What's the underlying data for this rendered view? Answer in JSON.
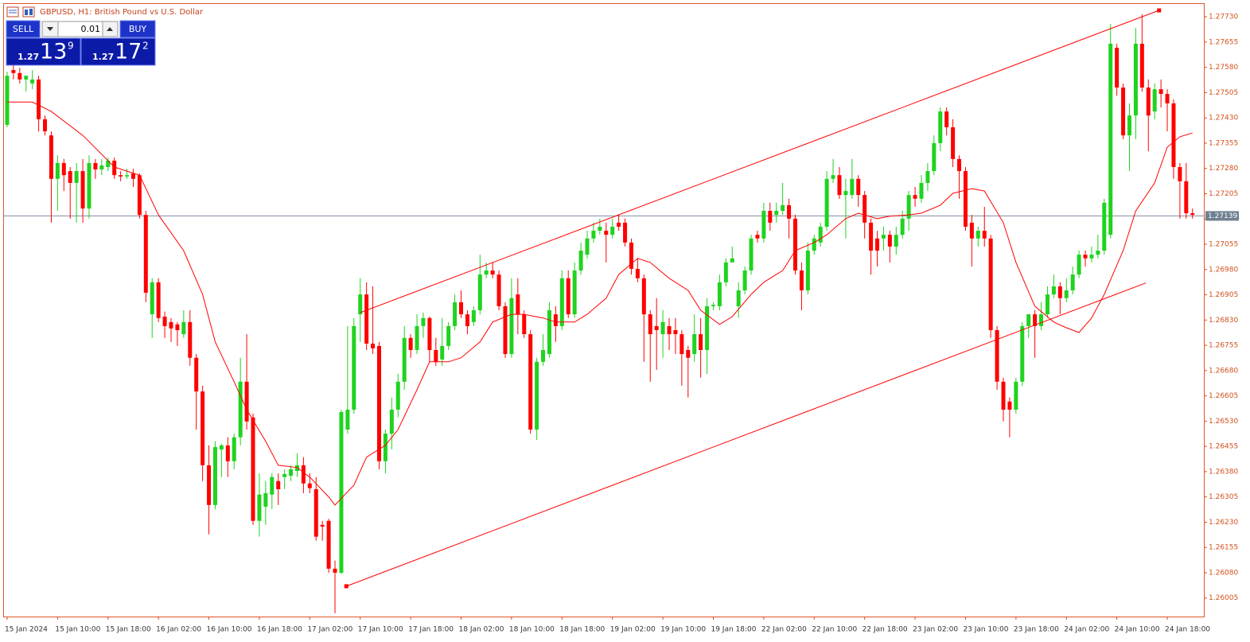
{
  "chart_data": {
    "type": "candlestick",
    "title": "GBPUSD, H1:  British Pound vs U.S. Dollar",
    "up_color": "#1fd31f",
    "down_color": "#ff0000",
    "axis_color": "#d2501e",
    "xlim": [
      -0.5,
      189.8
    ],
    "xticks": [
      {
        "value": 0,
        "label": "15 Jan 2024"
      },
      {
        "value": 8,
        "label": "15 Jan 10:00"
      },
      {
        "value": 16,
        "label": "15 Jan 18:00"
      },
      {
        "value": 24,
        "label": "16 Jan 02:00"
      },
      {
        "value": 32,
        "label": "16 Jan 10:00"
      },
      {
        "value": 40,
        "label": "16 Jan 18:00"
      },
      {
        "value": 48,
        "label": "17 Jan 02:00"
      },
      {
        "value": 56,
        "label": "17 Jan 10:00"
      },
      {
        "value": 64,
        "label": "17 Jan 18:00"
      },
      {
        "value": 72,
        "label": "18 Jan 02:00"
      },
      {
        "value": 80,
        "label": "18 Jan 10:00"
      },
      {
        "value": 88,
        "label": "18 Jan 18:00"
      },
      {
        "value": 96,
        "label": "19 Jan 02:00"
      },
      {
        "value": 104,
        "label": "19 Jan 10:00"
      },
      {
        "value": 112,
        "label": "19 Jan 18:00"
      },
      {
        "value": 120,
        "label": "22 Jan 02:00"
      },
      {
        "value": 128,
        "label": "22 Jan 10:00"
      },
      {
        "value": 136,
        "label": "22 Jan 18:00"
      },
      {
        "value": 144,
        "label": "23 Jan 02:00"
      },
      {
        "value": 152,
        "label": "23 Jan 10:00"
      },
      {
        "value": 160,
        "label": "23 Jan 18:00"
      },
      {
        "value": 168,
        "label": "24 Jan 02:00"
      },
      {
        "value": 176,
        "label": "24 Jan 10:00"
      },
      {
        "value": 184,
        "label": "24 Jan 18:00"
      }
    ],
    "ylim": [
      1.2595,
      1.27768
    ],
    "yticks": [
      1.26005,
      {
        "value": 1.2608,
        "label": "1.26080"
      },
      1.26155,
      {
        "value": 1.2623,
        "label": "1.26230"
      },
      1.26305,
      {
        "value": 1.2638,
        "label": "1.26380"
      },
      1.26455,
      {
        "value": 1.2653,
        "label": "1.26530"
      },
      1.26605,
      {
        "value": 1.2668,
        "label": "1.26680"
      },
      1.26755,
      {
        "value": 1.2683,
        "label": "1.26830"
      },
      1.26905,
      {
        "value": 1.2698,
        "label": "1.26980"
      },
      1.27055,
      {
        "value": 1.2713,
        "label": "1.27130"
      },
      1.27205,
      {
        "value": 1.2728,
        "label": "1.27280"
      },
      1.27355,
      {
        "value": 1.2743,
        "label": "1.27430"
      },
      1.27505,
      {
        "value": 1.2758,
        "label": "1.27580"
      },
      1.27655,
      {
        "value": 1.2773,
        "label": "1.27730"
      }
    ],
    "open": [
      1.27409,
      1.27572,
      1.27563,
      1.27544,
      1.27532,
      1.27544,
      1.27426,
      1.27378,
      1.27249,
      1.27296,
      1.27272,
      1.27237,
      1.27272,
      1.27161,
      1.27296,
      1.27277,
      1.27284,
      1.27303,
      1.2726,
      1.27256,
      1.27265,
      1.2726,
      1.27142,
      1.26847,
      1.26942,
      1.2684,
      1.26824,
      1.26817,
      1.26788,
      1.26824,
      1.26718,
      1.26618,
      1.26399,
      1.26281,
      1.26446,
      1.26458,
      1.26411,
      1.26482,
      1.26647,
      1.26541,
      1.26234,
      1.26276,
      1.26312,
      1.26352,
      1.26364,
      1.26368,
      1.26382,
      1.26399,
      1.26345,
      1.26328,
      1.26222,
      1.26234,
      1.26092,
      1.2608,
      1.26505,
      1.26564,
      1.26847,
      1.26906,
      1.2676,
      1.26753,
      1.26411,
      1.26493,
      1.26564,
      1.26647,
      1.26777,
      1.26741,
      1.26812,
      1.26836,
      1.26741,
      1.26713,
      1.26753,
      1.26812,
      1.26883,
      1.26847,
      1.26824,
      1.26859,
      1.26965,
      1.26977,
      1.26965,
      1.26871,
      1.26729,
      1.26906,
      1.26847,
      1.26788,
      1.26505,
      1.26706,
      1.26729,
      1.26847,
      1.26812,
      1.26954,
      1.26847,
      1.26977,
      1.27024,
      1.27072,
      1.27095,
      1.27095,
      1.27083,
      1.27119,
      1.27119,
      1.2706,
      1.26982,
      1.26954,
      1.26847,
      1.26812,
      1.26788,
      1.26812,
      1.268,
      1.26788,
      1.26741,
      1.26729,
      1.26788,
      1.26741,
      1.26871,
      1.26871,
      1.26942,
      1.27001,
      1.26871,
      1.26918,
      1.26977,
      1.27083,
      1.27072,
      1.27154,
      1.27142,
      1.27154,
      1.27171,
      1.27131,
      1.26977,
      1.26918,
      1.27036,
      1.2706,
      1.27107,
      1.27249,
      1.2726,
      1.27201,
      1.27201,
      1.27249,
      1.27201,
      1.27119,
      1.27072,
      1.27072,
      1.27083,
      1.27048,
      1.27083,
      1.27131,
      1.27201,
      1.2719,
      1.27237,
      1.27272,
      1.27355,
      1.27449,
      1.27402,
      1.27308,
      1.27272,
      1.27119,
      1.27072,
      1.27095,
      1.27072,
      1.268,
      1.26647,
      1.26588,
      1.26564,
      1.26647,
      1.26812,
      1.26847,
      1.26812,
      1.26847,
      1.26906,
      1.2693,
      1.26895,
      1.26918,
      1.26965,
      1.27024,
      1.27013,
      1.27024,
      1.27036,
      1.27083,
      1.27638,
      1.2752,
      1.27378,
      1.27437,
      1.2765,
      1.2752,
      1.27449,
      1.27515,
      1.27501,
      1.27473,
      1.27284,
      1.27242,
      1.27147
    ],
    "high": [
      1.27567,
      1.27586,
      1.27579,
      1.27555,
      1.27572,
      1.27555,
      1.27437,
      1.2739,
      1.27319,
      1.27308,
      1.27284,
      1.27296,
      1.27308,
      1.27319,
      1.27308,
      1.27308,
      1.27312,
      1.27312,
      1.27272,
      1.27279,
      1.27279,
      1.27265,
      1.27154,
      1.26954,
      1.26954,
      1.26855,
      1.26836,
      1.26824,
      1.26859,
      1.26859,
      1.26729,
      1.26635,
      1.26458,
      1.2647,
      1.26463,
      1.26482,
      1.26493,
      1.26718,
      1.26788,
      1.26552,
      1.26375,
      1.26352,
      1.26375,
      1.26375,
      1.26387,
      1.26399,
      1.26434,
      1.26423,
      1.26375,
      1.26364,
      1.26234,
      1.2624,
      1.26116,
      1.26564,
      1.26812,
      1.26836,
      1.26954,
      1.26942,
      1.2693,
      1.26765,
      1.26505,
      1.266,
      1.2667,
      1.26812,
      1.26788,
      1.26847,
      1.26852,
      1.2684,
      1.26777,
      1.26836,
      1.26824,
      1.26906,
      1.26918,
      1.26859,
      1.26871,
      1.27024,
      1.27001,
      1.27001,
      1.26977,
      1.26883,
      1.26954,
      1.26954,
      1.26859,
      1.268,
      1.26718,
      1.26788,
      1.26883,
      1.26871,
      1.26977,
      1.26977,
      1.27001,
      1.2706,
      1.27095,
      1.27119,
      1.27131,
      1.27119,
      1.27131,
      1.27142,
      1.27131,
      1.27072,
      1.27013,
      1.26965,
      1.26859,
      1.26895,
      1.26859,
      1.26836,
      1.26836,
      1.268,
      1.26753,
      1.26847,
      1.26836,
      1.26895,
      1.26883,
      1.26965,
      1.27013,
      1.27048,
      1.26942,
      1.26989,
      1.27083,
      1.27095,
      1.27178,
      1.27178,
      1.27178,
      1.27237,
      1.2719,
      1.27142,
      1.27001,
      1.2706,
      1.27083,
      1.27119,
      1.27272,
      1.27308,
      1.27284,
      1.27249,
      1.27308,
      1.2726,
      1.27213,
      1.27131,
      1.27095,
      1.27107,
      1.27095,
      1.27107,
      1.27154,
      1.27213,
      1.27225,
      1.2726,
      1.27296,
      1.27378,
      1.27461,
      1.27461,
      1.27426,
      1.27319,
      1.27284,
      1.27142,
      1.27107,
      1.27166,
      1.27083,
      1.26812,
      1.26659,
      1.266,
      1.26659,
      1.26824,
      1.26847,
      1.26859,
      1.26883,
      1.2693,
      1.26965,
      1.26942,
      1.26954,
      1.26989,
      1.27036,
      1.27036,
      1.27048,
      1.27083,
      1.2719,
      1.27709,
      1.2765,
      1.27532,
      1.27473,
      1.27697,
      1.27737,
      1.27544,
      1.27532,
      1.27544,
      1.27515,
      1.27485,
      1.27296,
      1.27296,
      1.27161
    ],
    "low": [
      1.27402,
      1.27544,
      1.27532,
      1.27508,
      1.27515,
      1.2739,
      1.27378,
      1.27119,
      1.27154,
      1.27213,
      1.27131,
      1.27119,
      1.27119,
      1.27131,
      1.27249,
      1.2726,
      1.27272,
      1.27249,
      1.27242,
      1.27249,
      1.27225,
      1.27131,
      1.26883,
      1.26777,
      1.26824,
      1.26777,
      1.26765,
      1.26753,
      1.26777,
      1.26694,
      1.26505,
      1.26352,
      1.26194,
      1.26269,
      1.26364,
      1.26364,
      1.26387,
      1.26458,
      1.26505,
      1.26222,
      1.26187,
      1.26222,
      1.26269,
      1.26281,
      1.26328,
      1.26352,
      1.26364,
      1.26316,
      1.26316,
      1.26175,
      1.26175,
      1.2608,
      1.2596,
      1.26076,
      1.26493,
      1.26552,
      1.26765,
      1.26741,
      1.26729,
      1.26387,
      1.26375,
      1.26446,
      1.26541,
      1.26623,
      1.26718,
      1.26729,
      1.26777,
      1.26706,
      1.26694,
      1.26694,
      1.26741,
      1.268,
      1.26836,
      1.26788,
      1.26812,
      1.26847,
      1.26954,
      1.26954,
      1.26859,
      1.26718,
      1.26718,
      1.26788,
      1.26777,
      1.26493,
      1.26474,
      1.26694,
      1.26718,
      1.26765,
      1.268,
      1.26836,
      1.26836,
      1.26965,
      1.27013,
      1.2706,
      1.27083,
      1.27001,
      1.27072,
      1.27095,
      1.27048,
      1.26965,
      1.26942,
      1.26706,
      1.26647,
      1.26682,
      1.26718,
      1.26741,
      1.26729,
      1.26635,
      1.266,
      1.26706,
      1.26659,
      1.2667,
      1.26859,
      1.26859,
      1.2693,
      1.27001,
      1.26836,
      1.26906,
      1.26965,
      1.2706,
      1.2706,
      1.27095,
      1.27119,
      1.27142,
      1.27072,
      1.26965,
      1.26859,
      1.26906,
      1.27024,
      1.27048,
      1.27095,
      1.27237,
      1.2719,
      1.27072,
      1.2719,
      1.27166,
      1.27072,
      1.26965,
      1.26989,
      1.27036,
      1.27001,
      1.27024,
      1.27072,
      1.27095,
      1.27166,
      1.27178,
      1.27213,
      1.2726,
      1.27331,
      1.27378,
      1.27284,
      1.2719,
      1.27095,
      1.26989,
      1.27048,
      1.27048,
      1.26777,
      1.26623,
      1.26529,
      1.26482,
      1.26552,
      1.26635,
      1.26777,
      1.26718,
      1.268,
      1.26836,
      1.26895,
      1.26847,
      1.26883,
      1.26906,
      1.26954,
      1.26989,
      1.27001,
      1.27013,
      1.27024,
      1.27072,
      1.27496,
      1.27367,
      1.27272,
      1.27367,
      1.27508,
      1.27331,
      1.27426,
      1.27461,
      1.2739,
      1.27249,
      1.27131,
      1.27131,
      1.27131
    ],
    "close": [
      1.27555,
      1.27563,
      1.27544,
      1.27555,
      1.27544,
      1.27426,
      1.2739,
      1.27249,
      1.27296,
      1.2726,
      1.27237,
      1.27272,
      1.27161,
      1.27296,
      1.27277,
      1.27289,
      1.27303,
      1.2726,
      1.27256,
      1.2726,
      1.27249,
      1.27142,
      1.26911,
      1.26942,
      1.26836,
      1.26812,
      1.26805,
      1.268,
      1.26824,
      1.26718,
      1.26618,
      1.26399,
      1.26281,
      1.26453,
      1.26458,
      1.26411,
      1.26482,
      1.26647,
      1.26529,
      1.26234,
      1.26312,
      1.26316,
      1.26364,
      1.26328,
      1.26373,
      1.26387,
      1.26399,
      1.26345,
      1.26331,
      1.26187,
      1.26217,
      1.26092,
      1.2608,
      1.26557,
      1.26564,
      1.26812,
      1.26906,
      1.2676,
      1.26746,
      1.26411,
      1.26493,
      1.26564,
      1.26647,
      1.26777,
      1.26741,
      1.26812,
      1.26836,
      1.26741,
      1.26706,
      1.26753,
      1.26812,
      1.26883,
      1.26847,
      1.26812,
      1.26859,
      1.26965,
      1.26977,
      1.26965,
      1.26871,
      1.26729,
      1.26895,
      1.26847,
      1.26788,
      1.26505,
      1.26706,
      1.26741,
      1.26859,
      1.26812,
      1.26954,
      1.26847,
      1.26977,
      1.27036,
      1.27072,
      1.27095,
      1.27107,
      1.27083,
      1.27107,
      1.27107,
      1.2706,
      1.26982,
      1.26954,
      1.26847,
      1.26788,
      1.268,
      1.26824,
      1.26788,
      1.26788,
      1.26729,
      1.26718,
      1.26788,
      1.26741,
      1.26871,
      1.26875,
      1.26942,
      1.27001,
      1.27013,
      1.26918,
      1.26977,
      1.27072,
      1.27072,
      1.27154,
      1.27119,
      1.27154,
      1.27171,
      1.27131,
      1.26977,
      1.26918,
      1.27036,
      1.27072,
      1.27107,
      1.27249,
      1.2726,
      1.27201,
      1.27213,
      1.27249,
      1.27201,
      1.27119,
      1.27036,
      1.27036,
      1.27083,
      1.27048,
      1.27083,
      1.27131,
      1.27201,
      1.2719,
      1.27237,
      1.27272,
      1.27355,
      1.27449,
      1.27402,
      1.27308,
      1.27272,
      1.27107,
      1.27072,
      1.27095,
      1.27072,
      1.268,
      1.26647,
      1.26564,
      1.26564,
      1.26647,
      1.26812,
      1.26847,
      1.26812,
      1.26847,
      1.26906,
      1.2693,
      1.26895,
      1.26918,
      1.26965,
      1.27024,
      1.27013,
      1.27024,
      1.27036,
      1.27178,
      1.2765,
      1.2752,
      1.27378,
      1.27437,
      1.2765,
      1.2752,
      1.27437,
      1.27515,
      1.27501,
      1.27473,
      1.27284,
      1.27242,
      1.27147,
      1.27142
    ],
    "ma": {
      "color": "#ff0000",
      "x": [
        0,
        4,
        7,
        12,
        17,
        21,
        24,
        28,
        31,
        33,
        36,
        38,
        41,
        43,
        46,
        48,
        51,
        52,
        55,
        57,
        60,
        62,
        65,
        67,
        70,
        72,
        75,
        77,
        80,
        82,
        85,
        87,
        90,
        92,
        95,
        97,
        100,
        102,
        105,
        108,
        110,
        113,
        115,
        118,
        120,
        123,
        125,
        128,
        130,
        133,
        135,
        138,
        140,
        143,
        145,
        148,
        150,
        153,
        155,
        158,
        160,
        163,
        166,
        168,
        170,
        172,
        174,
        177,
        179,
        182,
        184,
        186,
        188
      ],
      "values": [
        1.27477,
        1.27477,
        1.27449,
        1.27378,
        1.27284,
        1.2726,
        1.27142,
        1.27036,
        1.26906,
        1.26765,
        1.26647,
        1.26564,
        1.2647,
        1.26399,
        1.26392,
        1.26364,
        1.26305,
        1.26281,
        1.2634,
        1.26423,
        1.26458,
        1.26505,
        1.26623,
        1.26706,
        1.26706,
        1.26718,
        1.26765,
        1.26824,
        1.26847,
        1.26847,
        1.26836,
        1.26824,
        1.26824,
        1.26847,
        1.26895,
        1.26965,
        1.27013,
        1.27001,
        1.26954,
        1.26918,
        1.26859,
        1.26817,
        1.2684,
        1.26906,
        1.26942,
        1.26977,
        1.27036,
        1.2706,
        1.27083,
        1.27131,
        1.27147,
        1.27131,
        1.27138,
        1.27142,
        1.27147,
        1.27171,
        1.27206,
        1.2722,
        1.27213,
        1.27119,
        1.27001,
        1.26871,
        1.26824,
        1.26807,
        1.26793,
        1.26836,
        1.26906,
        1.27036,
        1.27154,
        1.27237,
        1.27343,
        1.27374,
        1.27385
      ]
    },
    "trendlines": [
      {
        "color": "#ff0000",
        "x": [
          56,
          182.7
        ],
        "values": [
          1.26852,
          1.27749
        ]
      },
      {
        "color": "#ff0000",
        "x": [
          53.8,
          180.6
        ],
        "values": [
          1.2604,
          1.2694
        ]
      }
    ],
    "price_line": {
      "value": 1.27139,
      "color": "#7f8fa0"
    }
  },
  "trade_panel": {
    "sell": "SELL",
    "buy": "BUY",
    "lot": "0.01",
    "bid": {
      "prefix": "1.27",
      "big": "13",
      "small": "9"
    },
    "ask": {
      "prefix": "1.27",
      "big": "17",
      "small": "2"
    }
  }
}
